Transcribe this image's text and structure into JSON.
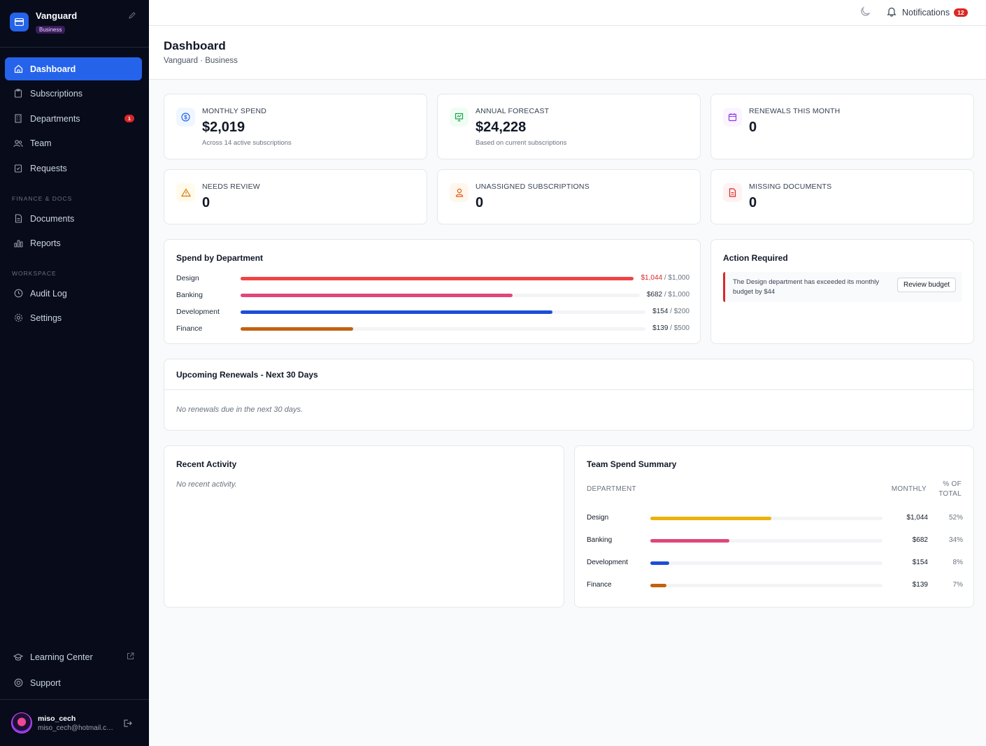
{
  "brand": {
    "name": "Vanguard",
    "badge": "Business"
  },
  "nav": {
    "items": [
      {
        "label": "Dashboard"
      },
      {
        "label": "Subscriptions"
      },
      {
        "label": "Departments",
        "count": "1"
      },
      {
        "label": "Team"
      },
      {
        "label": "Requests"
      }
    ],
    "finance_section": "FINANCE & DOCS",
    "finance_items": [
      {
        "label": "Documents"
      },
      {
        "label": "Reports"
      }
    ],
    "workspace_section": "WORKSPACE",
    "workspace_items": [
      {
        "label": "Audit Log"
      },
      {
        "label": "Settings"
      }
    ],
    "bottom_items": [
      {
        "label": "Learning Center"
      },
      {
        "label": "Support"
      }
    ]
  },
  "user": {
    "name": "miso_cech",
    "email": "miso_cech@hotmail.com"
  },
  "topbar": {
    "notifications_label": "Notifications",
    "notifications_count": "12"
  },
  "page": {
    "title": "Dashboard",
    "subtitle": "Vanguard · Business"
  },
  "stats": [
    {
      "label": "MONTHLY SPEND",
      "value": "$2,019",
      "sub": "Across 14 active subscriptions",
      "icon": "dollar-icon",
      "color": "#2563eb",
      "bg": "#eff6ff"
    },
    {
      "label": "ANNUAL FORECAST",
      "value": "$24,228",
      "sub": "Based on current subscriptions",
      "icon": "presentation-chart-icon",
      "color": "#16a34a",
      "bg": "#f0fdf4"
    },
    {
      "label": "RENEWALS THIS MONTH",
      "value": "0",
      "sub": "",
      "icon": "calendar-icon",
      "color": "#9333ea",
      "bg": "#faf5ff"
    },
    {
      "label": "NEEDS REVIEW",
      "value": "0",
      "sub": "",
      "icon": "warning-icon",
      "color": "#d97706",
      "bg": "#fffbeb"
    },
    {
      "label": "UNASSIGNED SUBSCRIPTIONS",
      "value": "0",
      "sub": "",
      "icon": "user-icon",
      "color": "#ea580c",
      "bg": "#fff7ed"
    },
    {
      "label": "MISSING DOCUMENTS",
      "value": "0",
      "sub": "",
      "icon": "document-icon",
      "color": "#dc2626",
      "bg": "#fef2f2"
    }
  ],
  "spend_by_department": {
    "title": "Spend by Department",
    "rows": [
      {
        "name": "Design",
        "spent": "$1,044",
        "limit": " / $1,000",
        "ratio": 1.0,
        "color": "#ef4444",
        "over": true
      },
      {
        "name": "Banking",
        "spent": "$682",
        "limit": " / $1,000",
        "ratio": 0.682,
        "color": "#e0457b",
        "over": false
      },
      {
        "name": "Development",
        "spent": "$154",
        "limit": " / $200",
        "ratio": 0.77,
        "color": "#1d4ed8",
        "over": false
      },
      {
        "name": "Finance",
        "spent": "$139",
        "limit": " / $500",
        "ratio": 0.278,
        "color": "#c2620f",
        "over": false
      }
    ]
  },
  "action_required": {
    "title": "Action Required",
    "message": "The Design department has exceeded its monthly budget by $44",
    "button": "Review budget"
  },
  "renewals": {
    "title": "Upcoming Renewals - Next 30 Days",
    "empty": "No renewals due in the next 30 days."
  },
  "activity": {
    "title": "Recent Activity",
    "empty": "No recent activity."
  },
  "team_spend": {
    "title": "Team Spend Summary",
    "col_department": "DEPARTMENT",
    "col_monthly": "MONTHLY",
    "col_pct_line1": "% OF",
    "col_pct_line2": "TOTAL",
    "rows": [
      {
        "name": "Design",
        "amount": "$1,044",
        "pct": "52%",
        "ratio": 0.52,
        "color": "#eab308"
      },
      {
        "name": "Banking",
        "amount": "$682",
        "pct": "34%",
        "ratio": 0.34,
        "color": "#e0457b"
      },
      {
        "name": "Development",
        "amount": "$154",
        "pct": "8%",
        "ratio": 0.08,
        "color": "#1d4ed8"
      },
      {
        "name": "Finance",
        "amount": "$139",
        "pct": "7%",
        "ratio": 0.07,
        "color": "#c2620f"
      }
    ]
  }
}
